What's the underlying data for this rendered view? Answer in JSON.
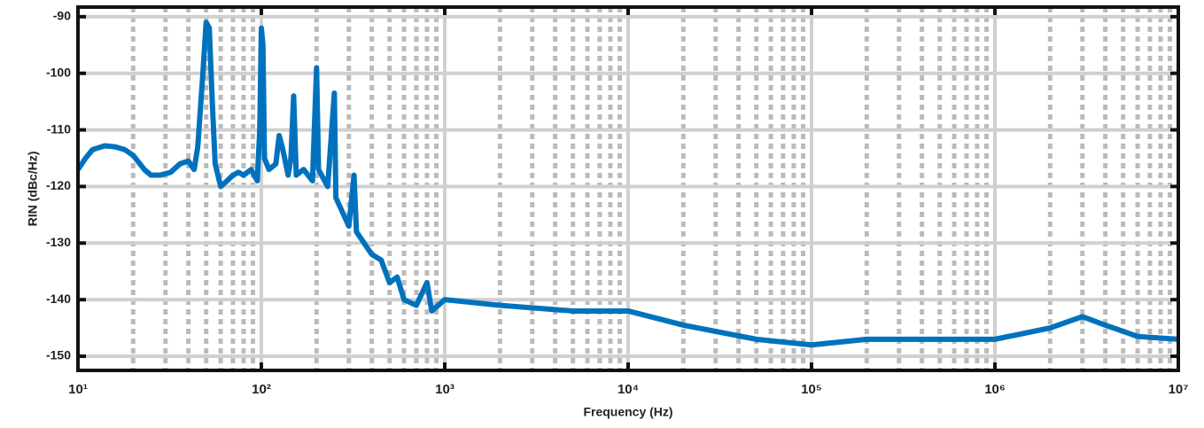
{
  "chart_data": {
    "type": "line",
    "xlabel": "Frequency (Hz)",
    "ylabel": "RIN (dBc/Hz)",
    "xscale": "log",
    "grid": true,
    "minor_grid": true,
    "xlim": [
      10,
      10000000
    ],
    "ylim": [
      -152.5,
      -88.3
    ],
    "xticks": [
      {
        "value": 10,
        "label": "10¹"
      },
      {
        "value": 100,
        "label": "10²"
      },
      {
        "value": 1000,
        "label": "10³"
      },
      {
        "value": 10000,
        "label": "10⁴"
      },
      {
        "value": 100000,
        "label": "10⁵"
      },
      {
        "value": 1000000,
        "label": "10⁶"
      },
      {
        "value": 10000000,
        "label": "10⁷"
      }
    ],
    "yticks": [
      -150,
      -140,
      -130,
      -120,
      -110,
      -100,
      -90
    ],
    "series": [
      {
        "name": "RIN",
        "color": "#0072bd",
        "x": [
          10,
          11,
          12,
          14,
          16,
          18,
          20,
          23,
          25,
          28,
          32,
          36,
          40,
          43,
          45,
          48,
          50,
          52,
          54,
          56,
          60,
          65,
          70,
          75,
          80,
          88,
          95,
          98,
          100,
          102,
          104,
          110,
          120,
          125,
          130,
          140,
          145,
          150,
          155,
          170,
          190,
          200,
          205,
          230,
          250,
          255,
          300,
          320,
          330,
          400,
          450,
          500,
          550,
          600,
          700,
          800,
          850,
          1000,
          2000,
          5000,
          10000,
          20000,
          50000,
          100000,
          200000,
          500000,
          1000000,
          2000000,
          3000000,
          4000000,
          6000000,
          10000000
        ],
        "values": [
          -117,
          -115,
          -113.5,
          -112.8,
          -113,
          -113.5,
          -114.5,
          -117,
          -118,
          -118,
          -117.5,
          -116,
          -115.5,
          -117,
          -113,
          -100,
          -91,
          -92,
          -105,
          -116,
          -120,
          -119,
          -118,
          -117.5,
          -118,
          -117,
          -119,
          -110,
          -92,
          -95,
          -115,
          -117,
          -116,
          -111,
          -113,
          -118,
          -115,
          -104,
          -118,
          -117,
          -119,
          -99,
          -117,
          -120,
          -103.5,
          -122,
          -127,
          -118,
          -128,
          -132,
          -133,
          -137,
          -136,
          -140,
          -141,
          -137,
          -142,
          -140,
          -141,
          -142,
          -142,
          -144.5,
          -147,
          -148,
          -147,
          -147,
          -147,
          -145,
          -143,
          -144.5,
          -146.5,
          -147
        ]
      }
    ]
  }
}
